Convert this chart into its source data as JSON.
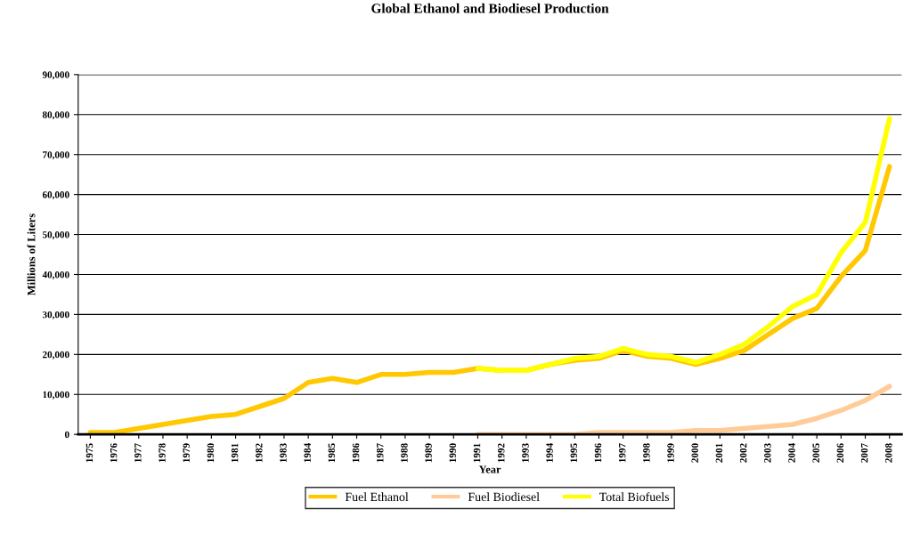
{
  "chart_data": {
    "type": "line",
    "title": "Global Ethanol and Biodiesel Production",
    "xlabel": "Year",
    "ylabel": "Millions of Liters",
    "categories": [
      "1975",
      "1976",
      "1977",
      "1978",
      "1979",
      "1980",
      "1981",
      "1982",
      "1983",
      "1984",
      "1985",
      "1986",
      "1987",
      "1988",
      "1989",
      "1990",
      "1991",
      "1992",
      "1993",
      "1994",
      "1995",
      "1996",
      "1997",
      "1998",
      "1999",
      "2000",
      "2001",
      "2002",
      "2003",
      "2004",
      "2005",
      "2006",
      "2007",
      "2008"
    ],
    "series": [
      {
        "name": "Fuel Ethanol",
        "color": "#ffc800",
        "values": [
          500,
          500,
          1500,
          2500,
          3500,
          4500,
          5000,
          7000,
          9000,
          13000,
          14000,
          13000,
          15000,
          15000,
          15500,
          15500,
          16500,
          16000,
          16000,
          17500,
          18500,
          19000,
          21000,
          19500,
          19000,
          17500,
          19000,
          21000,
          25000,
          29000,
          31500,
          39500,
          46000,
          67000
        ]
      },
      {
        "name": "Fuel Biodiesel",
        "color": "#ffcc99",
        "values": [
          null,
          null,
          null,
          null,
          null,
          null,
          null,
          null,
          null,
          null,
          null,
          null,
          null,
          null,
          null,
          null,
          0,
          0,
          0,
          0,
          0,
          500,
          500,
          500,
          500,
          1000,
          1000,
          1500,
          2000,
          2500,
          4000,
          6000,
          8500,
          12000
        ]
      },
      {
        "name": "Total Biofuels",
        "color": "#ffff00",
        "values": [
          null,
          null,
          null,
          null,
          null,
          null,
          null,
          null,
          null,
          null,
          null,
          null,
          null,
          null,
          null,
          null,
          16500,
          16000,
          16000,
          17500,
          19000,
          19500,
          21500,
          20000,
          19500,
          18000,
          20000,
          22500,
          27000,
          32000,
          35000,
          45500,
          53000,
          79000
        ]
      }
    ],
    "ylim": [
      0,
      90000
    ],
    "yticks": [
      {
        "value": 0,
        "label": "0"
      },
      {
        "value": 10000,
        "label": "10,000"
      },
      {
        "value": 20000,
        "label": "20,000"
      },
      {
        "value": 30000,
        "label": "30,000"
      },
      {
        "value": 40000,
        "label": "40,000"
      },
      {
        "value": 50000,
        "label": "50,000"
      },
      {
        "value": 60000,
        "label": "60,000"
      },
      {
        "value": 70000,
        "label": "70,000"
      },
      {
        "value": 80000,
        "label": "80,000"
      },
      {
        "value": 90000,
        "label": "90,000"
      }
    ],
    "grid": "y",
    "legend": "bottom",
    "marker": "none",
    "line_style": "solid"
  }
}
